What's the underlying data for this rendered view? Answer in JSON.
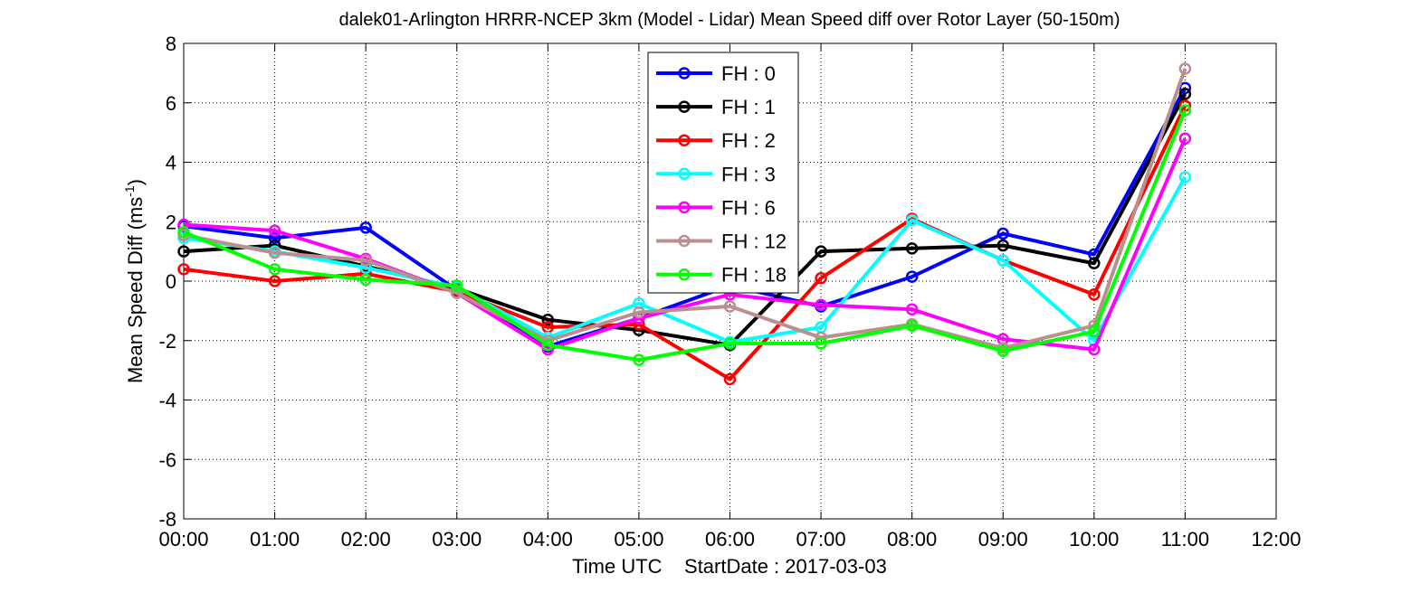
{
  "chart_data": {
    "type": "line",
    "title": "dalek01-Arlington HRRR-NCEP 3km (Model - Lidar) Mean Speed diff over Rotor Layer (50-150m)",
    "xlabel": "Time UTC    StartDate : 2017-03-03",
    "ylabel_main": "Mean Speed Diff (ms",
    "ylabel_sup": "-1",
    "ylabel_end": ")",
    "x_tick_labels": [
      "00:00",
      "01:00",
      "02:00",
      "03:00",
      "04:00",
      "05:00",
      "06:00",
      "07:00",
      "08:00",
      "09:00",
      "10:00",
      "11:00",
      "12:00"
    ],
    "y_ticks": [
      -8,
      -6,
      -4,
      -2,
      0,
      2,
      4,
      6,
      8
    ],
    "xlim": [
      0,
      12
    ],
    "ylim": [
      -8,
      8
    ],
    "grid": true,
    "legend_position": "top-center",
    "x": [
      0,
      1,
      2,
      3,
      4,
      5,
      6,
      7,
      8,
      9,
      10,
      11
    ],
    "series": [
      {
        "name": "FH : 0",
        "color": "#0000ff",
        "values": [
          1.85,
          1.45,
          1.8,
          -0.3,
          -2.2,
          -1.25,
          -0.15,
          -0.85,
          0.15,
          1.6,
          0.9,
          6.5
        ]
      },
      {
        "name": "FH : 1",
        "color": "#000000",
        "values": [
          1.0,
          1.2,
          0.5,
          -0.25,
          -1.3,
          -1.65,
          -2.15,
          1.0,
          1.1,
          1.2,
          0.6,
          6.3
        ]
      },
      {
        "name": "FH : 2",
        "color": "#ff0000",
        "values": [
          0.4,
          0.0,
          0.25,
          -0.35,
          -1.55,
          -1.45,
          -3.3,
          0.1,
          2.1,
          0.7,
          -0.45,
          5.9
        ]
      },
      {
        "name": "FH : 3",
        "color": "#00ffff",
        "values": [
          1.45,
          1.0,
          0.45,
          -0.2,
          -1.9,
          -0.75,
          -2.05,
          -1.55,
          2.05,
          0.7,
          -2.0,
          3.5
        ]
      },
      {
        "name": "FH : 6",
        "color": "#ff00ff",
        "values": [
          1.9,
          1.7,
          0.75,
          -0.4,
          -2.3,
          -1.25,
          -0.45,
          -0.8,
          -0.95,
          -1.95,
          -2.3,
          4.8
        ]
      },
      {
        "name": "FH : 12",
        "color": "#bc8f8f",
        "values": [
          1.55,
          0.95,
          0.7,
          -0.4,
          -2.0,
          -1.05,
          -0.85,
          -1.9,
          -1.45,
          -2.25,
          -1.5,
          7.15
        ]
      },
      {
        "name": "FH : 18",
        "color": "#00ff00",
        "values": [
          1.65,
          0.4,
          0.05,
          -0.15,
          -2.15,
          -2.65,
          -2.1,
          -2.1,
          -1.5,
          -2.35,
          -1.7,
          5.75
        ]
      }
    ]
  }
}
